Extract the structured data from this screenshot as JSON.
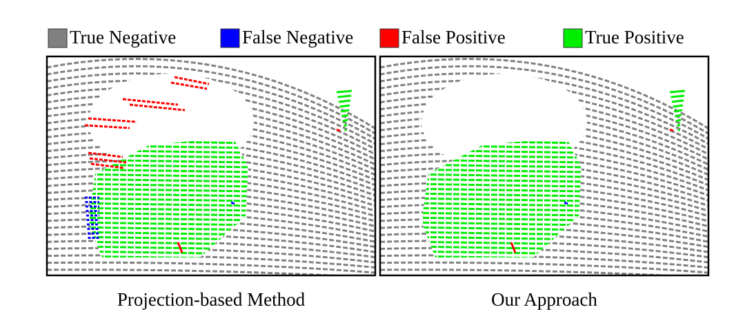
{
  "legend": [
    {
      "label": "True Negative",
      "color": "#808080"
    },
    {
      "label": "False Negative",
      "color": "#0000ff"
    },
    {
      "label": "False Positive",
      "color": "#ff0000"
    },
    {
      "label": "True Positive",
      "color": "#00ee00"
    }
  ],
  "panels": [
    {
      "caption": "Projection-based Method"
    },
    {
      "caption": "Our Approach"
    }
  ]
}
